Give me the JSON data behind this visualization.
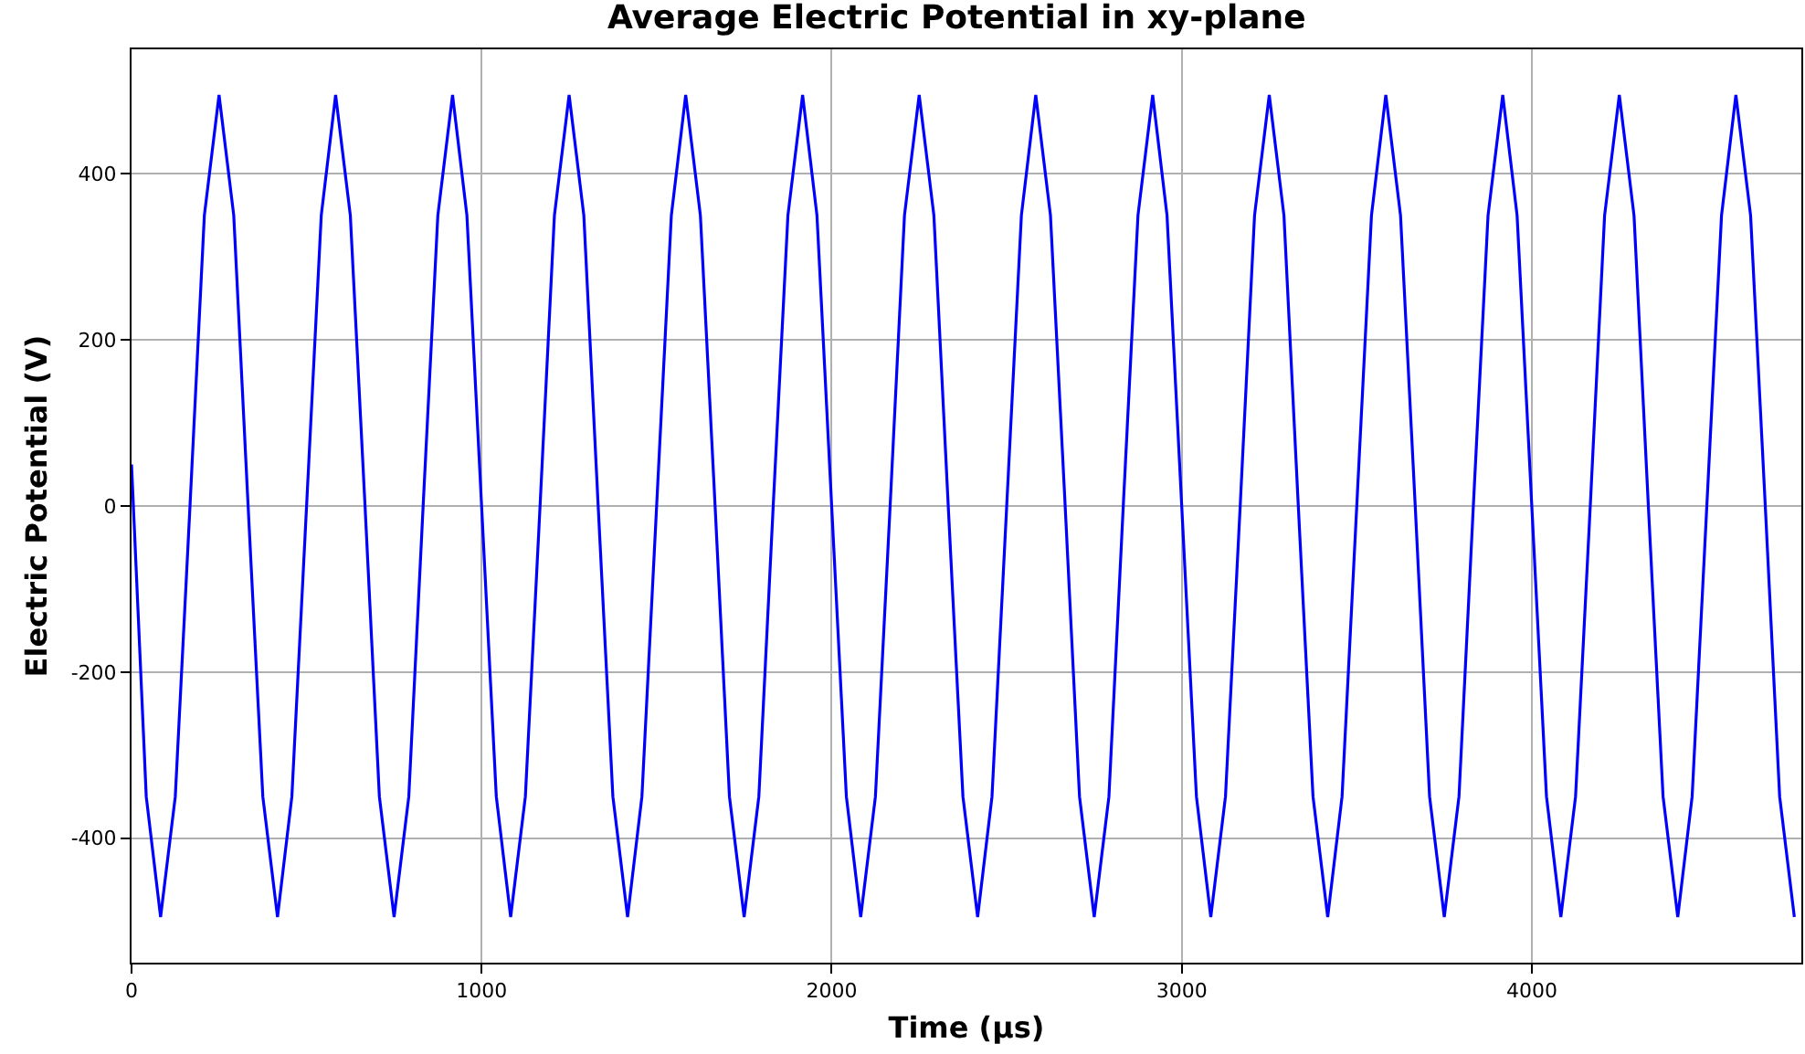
{
  "chart_data": {
    "type": "line",
    "title": "Average Electric Potential in xy-plane",
    "xlabel": "Time (μs)",
    "ylabel": "Electric Potential (V)",
    "x": [
      0,
      42,
      83,
      125,
      167,
      208,
      250,
      292,
      333,
      375,
      417,
      458,
      500,
      542,
      583,
      625,
      667,
      708,
      750,
      792,
      833,
      875,
      917,
      958,
      1000,
      1042,
      1083,
      1125,
      1167,
      1208,
      1250,
      1292,
      1333,
      1375,
      1417,
      1458,
      1500,
      1542,
      1583,
      1625,
      1667,
      1708,
      1750,
      1792,
      1833,
      1875,
      1917,
      1958,
      2000,
      2042,
      2083,
      2125,
      2167,
      2208,
      2250,
      2292,
      2333,
      2375,
      2417,
      2458,
      2500,
      2542,
      2583,
      2625,
      2667,
      2708,
      2750,
      2792,
      2833,
      2875,
      2917,
      2958,
      3000,
      3042,
      3083,
      3125,
      3167,
      3208,
      3250,
      3292,
      3333,
      3375,
      3417,
      3458,
      3500,
      3542,
      3583,
      3625,
      3667,
      3708,
      3750,
      3792,
      3833,
      3875,
      3917,
      3958,
      4000,
      4042,
      4083,
      4125,
      4167,
      4208,
      4250,
      4292,
      4333,
      4375,
      4417,
      4458,
      4500,
      4542,
      4583,
      4625,
      4667,
      4708,
      4750
    ],
    "series": [
      {
        "color": "#0000ff",
        "values": [
          50,
          -350,
          -495,
          -350,
          0,
          350,
          495,
          350,
          0,
          -350,
          -495,
          -350,
          0,
          350,
          495,
          350,
          0,
          -350,
          -495,
          -350,
          0,
          350,
          495,
          350,
          0,
          -350,
          -495,
          -350,
          0,
          350,
          495,
          350,
          0,
          -350,
          -495,
          -350,
          0,
          350,
          495,
          350,
          0,
          -350,
          -495,
          -350,
          0,
          350,
          495,
          350,
          0,
          -350,
          -495,
          -350,
          0,
          350,
          495,
          350,
          0,
          -350,
          -495,
          -350,
          0,
          350,
          495,
          350,
          0,
          -350,
          -495,
          -350,
          0,
          350,
          495,
          350,
          0,
          -350,
          -495,
          -350,
          0,
          350,
          495,
          350,
          0,
          -350,
          -495,
          -350,
          0,
          350,
          495,
          350,
          0,
          -350,
          -495,
          -350,
          0,
          350,
          495,
          350,
          0,
          -350,
          -495,
          -350,
          0,
          350,
          495,
          350,
          0,
          -350,
          -495,
          -350,
          0,
          350,
          495,
          350,
          0,
          -350,
          -495
        ]
      }
    ],
    "xlim": [
      0,
      4770
    ],
    "ylim": [
      -550,
      550
    ],
    "xticks": [
      0,
      1000,
      2000,
      3000,
      4000
    ],
    "yticks": [
      -400,
      -200,
      0,
      200,
      400
    ],
    "grid": true,
    "marker": "none",
    "line_style": "solid"
  }
}
